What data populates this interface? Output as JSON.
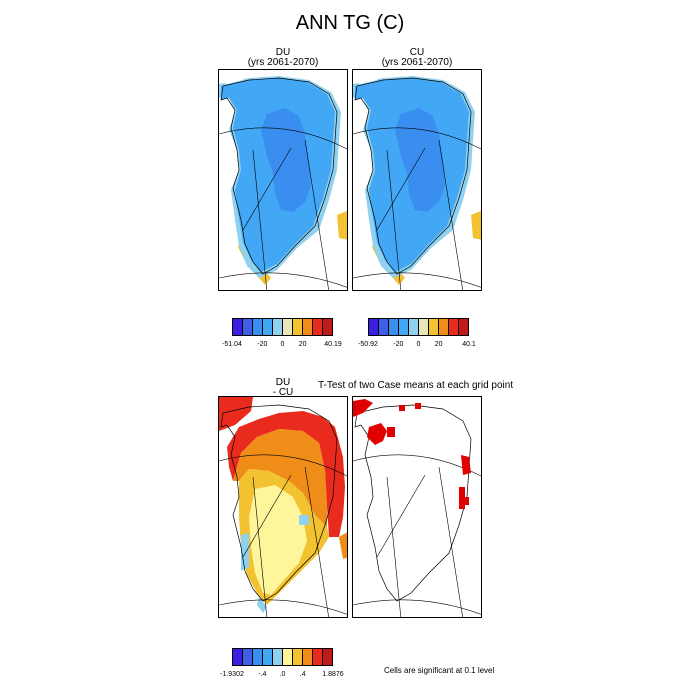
{
  "figure": {
    "title": "ANN TG (C)",
    "panel_du": {
      "name": "DU",
      "years": "(yrs 2061-2070)"
    },
    "panel_cu": {
      "name": "CU",
      "years": "(yrs 2061-2070)"
    },
    "panel_diff": {
      "line1": "DU",
      "line2": "- CU"
    },
    "ttest_title": "T-Test of two Case means at each grid point",
    "significance_note": "Cells are significant at 0.1 level"
  },
  "colorbars": {
    "du": {
      "colors": [
        "#3b1fe0",
        "#3f60e6",
        "#3a8ef0",
        "#42a8f5",
        "#8ed1f0",
        "#e6e6b8",
        "#f3c230",
        "#f08c18",
        "#e82b1c",
        "#c21a1a"
      ],
      "ticks": [
        "-51.04",
        "-20",
        "0",
        "20",
        "40.19"
      ]
    },
    "cu": {
      "colors": [
        "#3b1fe0",
        "#3f60e6",
        "#3a8ef0",
        "#42a8f5",
        "#8ed1f0",
        "#e6e6b8",
        "#f3c230",
        "#f08c18",
        "#e82b1c",
        "#c21a1a"
      ],
      "ticks": [
        "-50.92",
        "-20",
        "0",
        "20",
        "40.1"
      ]
    },
    "diff": {
      "colors": [
        "#3b1fe0",
        "#3f60e6",
        "#3a8ef0",
        "#42a8f5",
        "#8ed1f0",
        "#fff59a",
        "#f3c230",
        "#f08c18",
        "#e82b1c",
        "#c21a1a"
      ],
      "ticks": [
        "-1.9302",
        "-.4",
        ".0",
        ".4",
        "1.8876"
      ]
    }
  },
  "map_colors": {
    "ice_outer": "#42a8f5",
    "ice_inner": "#3a8ef0",
    "coast_fringe": "#8ed1f0",
    "warm_edge": "#f3c230",
    "diff_main": "#f3c230",
    "diff_north": "#f08c18",
    "diff_south": "#fff59a",
    "diff_edge": "#e82b1c",
    "diff_blue": "#8ed1f0",
    "sig": "#e00000"
  }
}
